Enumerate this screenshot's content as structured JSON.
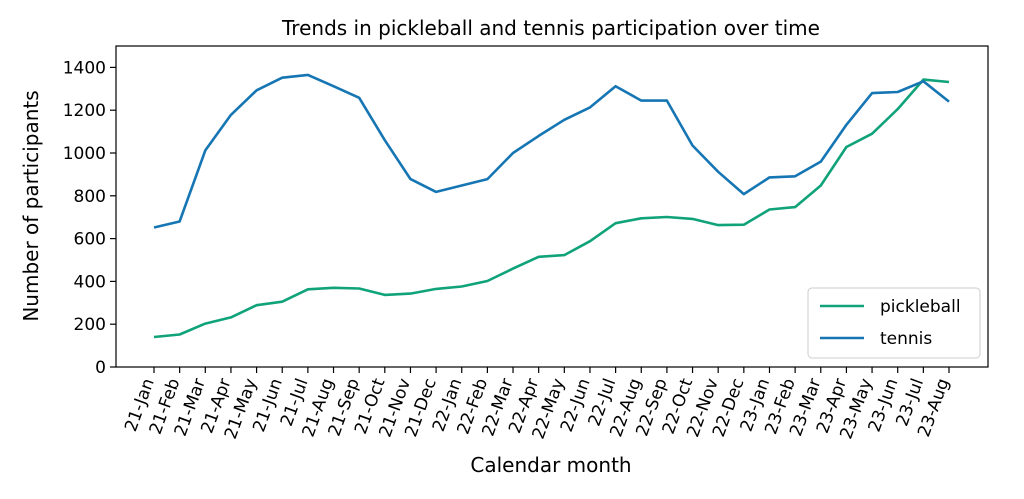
{
  "chart_data": {
    "type": "line",
    "title": "Trends in pickleball and tennis participation over time",
    "xlabel": "Calendar month",
    "ylabel": "Number of participants",
    "ylim": [
      0,
      1500
    ],
    "yticks": [
      0,
      200,
      400,
      600,
      800,
      1000,
      1200,
      1400
    ],
    "grid": false,
    "legend_position": "bottom-right",
    "categories": [
      "21-Jan",
      "21-Feb",
      "21-Mar",
      "21-Apr",
      "21-May",
      "21-Jun",
      "21-Jul",
      "21-Aug",
      "21-Sep",
      "21-Oct",
      "21-Nov",
      "21-Dec",
      "22-Jan",
      "22-Feb",
      "22-Mar",
      "22-Apr",
      "22-May",
      "22-Jun",
      "22-Jul",
      "22-Aug",
      "22-Sep",
      "22-Oct",
      "22-Nov",
      "22-Dec",
      "23-Jan",
      "23-Feb",
      "23-Mar",
      "23-Apr",
      "23-May",
      "23-Jun",
      "23-Jul",
      "23-Aug"
    ],
    "series": [
      {
        "name": "pickleball",
        "color": "#10a37a",
        "values": [
          140,
          152,
          203,
          232,
          289,
          305,
          363,
          370,
          367,
          337,
          343,
          365,
          376,
          402,
          460,
          515,
          523,
          588,
          672,
          695,
          701,
          692,
          663,
          665,
          736,
          747,
          848,
          1028,
          1090,
          1205,
          1343,
          1332
        ]
      },
      {
        "name": "tennis",
        "color": "#1676b4",
        "values": [
          652,
          680,
          1012,
          1178,
          1293,
          1352,
          1365,
          1312,
          1258,
          1060,
          878,
          818,
          848,
          878,
          1000,
          1080,
          1155,
          1213,
          1312,
          1245,
          1245,
          1035,
          912,
          808,
          886,
          891,
          960,
          1132,
          1280,
          1285,
          1335,
          1240
        ]
      }
    ]
  }
}
